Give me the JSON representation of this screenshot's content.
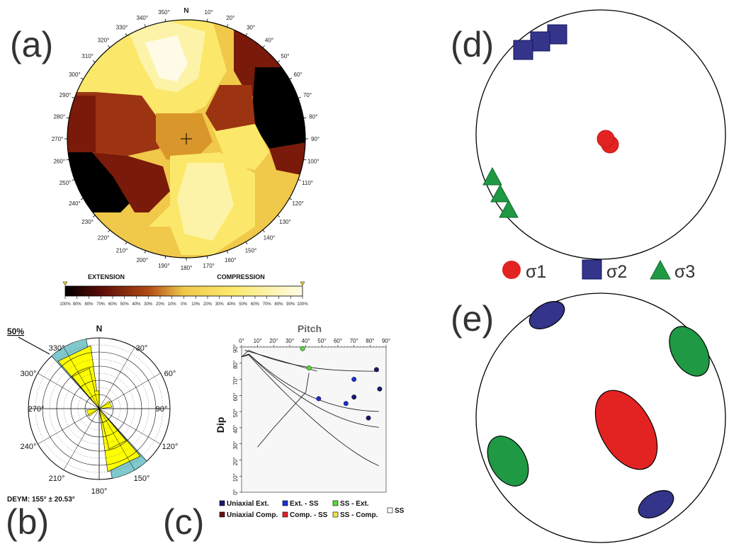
{
  "labels": {
    "a": "(a)",
    "b": "(b)",
    "c": "(c)",
    "d": "(d)",
    "e": "(e)"
  },
  "panel_a": {
    "north": "N",
    "azimuth_labels": [
      "10°",
      "20°",
      "30°",
      "40°",
      "50°",
      "60°",
      "70°",
      "80°",
      "90°",
      "100°",
      "110°",
      "120°",
      "130°",
      "140°",
      "150°",
      "160°",
      "170°",
      "180°",
      "190°",
      "200°",
      "210°",
      "220°",
      "230°",
      "240°",
      "250°",
      "260°",
      "270°",
      "280°",
      "290°",
      "300°",
      "310°",
      "320°",
      "330°",
      "340°",
      "350°"
    ],
    "scale_left": "EXTENSION",
    "scale_right": "COMPRESSION",
    "scale_ticks": [
      "100%",
      "90%",
      "80%",
      "70%",
      "60%",
      "50%",
      "40%",
      "30%",
      "20%",
      "10%",
      "0%",
      "10%",
      "20%",
      "30%",
      "40%",
      "50%",
      "60%",
      "70%",
      "80%",
      "90%",
      "100%"
    ],
    "colors": {
      "black": "#000000",
      "dark_red": "#7a1a0a",
      "red_brown": "#9c3412",
      "orange": "#d9962a",
      "gold": "#f0c84a",
      "yellow": "#fbe86a",
      "pale": "#fdf3a8",
      "white": "#fffbe6"
    }
  },
  "panel_b": {
    "scale": "50%",
    "north": "N",
    "angle_labels": [
      "30°",
      "60°",
      "90°",
      "120°",
      "150°",
      "180°",
      "210°",
      "240°",
      "270°",
      "300°",
      "330°"
    ],
    "footer": "DEYM: 155° ± 20.53°",
    "fill": "#ffff00",
    "outer_fill": "#7fc8cc"
  },
  "panel_c": {
    "title": "Pitch",
    "ylabel": "Dip",
    "x_ticks": [
      "0°",
      "10°",
      "20°",
      "30°",
      "40°",
      "50°",
      "60°",
      "70°",
      "80°",
      "90°"
    ],
    "y_ticks": [
      "0°",
      "10°",
      "20°",
      "30°",
      "40°",
      "50°",
      "60°",
      "70°",
      "80°",
      "90°"
    ],
    "legend": [
      {
        "label": "Uniaxial Ext.",
        "color": "#1a1a6e"
      },
      {
        "label": "Ext. - SS",
        "color": "#1e2fd0"
      },
      {
        "label": "SS - Ext.",
        "color": "#55dd33"
      },
      {
        "label": "SS",
        "color": "#ffffff"
      },
      {
        "label": "Uniaxial Comp.",
        "color": "#6b0f0f"
      },
      {
        "label": "Comp. - SS",
        "color": "#e32222"
      },
      {
        "label": "SS - Comp.",
        "color": "#f2e24a"
      }
    ],
    "points": [
      {
        "pitch": 38,
        "dip": 89,
        "color": "#55dd33"
      },
      {
        "pitch": 42,
        "dip": 77,
        "color": "#55dd33"
      },
      {
        "pitch": 48,
        "dip": 58,
        "color": "#1e2fd0"
      },
      {
        "pitch": 65,
        "dip": 55,
        "color": "#1e2fd0"
      },
      {
        "pitch": 70,
        "dip": 70,
        "color": "#1e2fd0"
      },
      {
        "pitch": 70,
        "dip": 59,
        "color": "#1a1a6e"
      },
      {
        "pitch": 79,
        "dip": 46,
        "color": "#1a1a6e"
      },
      {
        "pitch": 84,
        "dip": 76,
        "color": "#1a1a6e"
      },
      {
        "pitch": 86,
        "dip": 64,
        "color": "#1a1a6e"
      }
    ]
  },
  "panel_d": {
    "legend": [
      {
        "label": "σ1",
        "shape": "circle",
        "color": "#e32222"
      },
      {
        "label": "σ2",
        "shape": "square",
        "color": "#34348a"
      },
      {
        "label": "σ3",
        "shape": "triangle",
        "color": "#1f9944"
      }
    ]
  },
  "panel_e": {
    "colors": {
      "sigma1": "#e32222",
      "sigma2": "#34348a",
      "sigma3": "#1f9944"
    }
  }
}
